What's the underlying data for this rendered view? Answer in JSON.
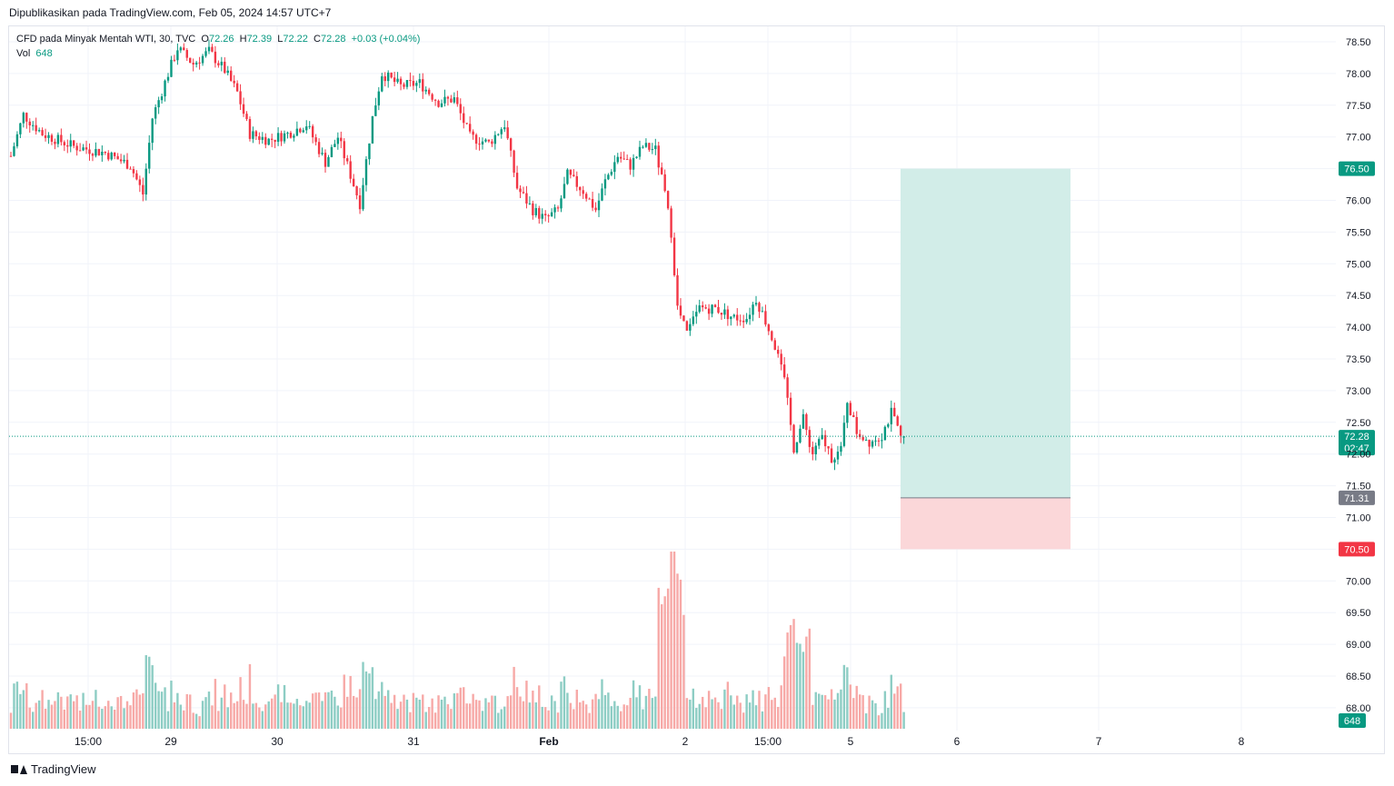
{
  "header": {
    "published": "Dipublikasikan pada TradingView.com, Feb 05, 2024 14:57 UTC+7"
  },
  "legend": {
    "symbol": "CFD pada Minyak Mentah WTI, 30, TVC",
    "o_label": "O",
    "o_value": "72.26",
    "h_label": "H",
    "h_value": "72.39",
    "l_label": "L",
    "l_value": "72.22",
    "c_label": "C",
    "c_value": "72.28",
    "change": "+0.03 (+0.04%)",
    "vol_label": "Vol",
    "vol_value": "648"
  },
  "footer": {
    "brand": "TradingView"
  },
  "colors": {
    "up": "#089981",
    "down": "#f23645",
    "up_vol": "#8dcdc4",
    "down_vol": "#f7a9a7",
    "target_fill": "#d2ede8",
    "stop_fill": "#fbd7d9",
    "grid": "#f0f3fa",
    "axis_text": "#131722",
    "current_price_tag": "#089981",
    "entry_tag": "#787b86",
    "stop_tag": "#f23645"
  },
  "chart_data": {
    "type": "candlestick",
    "timeframe": "30",
    "y_axis_ticks": [
      "68.00",
      "68.50",
      "69.00",
      "69.50",
      "70.00",
      "70.50",
      "71.00",
      "71.50",
      "72.00",
      "72.50",
      "73.00",
      "73.50",
      "74.00",
      "74.50",
      "75.00",
      "75.50",
      "76.00",
      "76.50",
      "77.00",
      "77.50",
      "78.00",
      "78.50"
    ],
    "ylim": [
      67.75,
      78.75
    ],
    "x_axis_labels": [
      "15:00",
      "29",
      "30",
      "31",
      "Feb",
      "2",
      "15:00",
      "5",
      "6",
      "7",
      "8"
    ],
    "current_price": {
      "value": "72.28",
      "countdown": "02:47"
    },
    "volume_last": "648",
    "position_tool": {
      "type": "long",
      "target": {
        "value": 76.5,
        "label": "76.50"
      },
      "entry": {
        "value": 71.31,
        "label": "71.31"
      },
      "stop": {
        "value": 70.5,
        "label": "70.50"
      }
    },
    "close_path": [
      {
        "t": 0,
        "c": 76.7
      },
      {
        "t": 4,
        "c": 77.35
      },
      {
        "t": 10,
        "c": 77.05
      },
      {
        "t": 20,
        "c": 76.85
      },
      {
        "t": 30,
        "c": 76.75
      },
      {
        "t": 38,
        "c": 76.55
      },
      {
        "t": 42,
        "c": 76.1
      },
      {
        "t": 45,
        "c": 77.3
      },
      {
        "t": 50,
        "c": 78.0
      },
      {
        "t": 53,
        "c": 78.4
      },
      {
        "t": 58,
        "c": 78.15
      },
      {
        "t": 63,
        "c": 78.35
      },
      {
        "t": 68,
        "c": 78.05
      },
      {
        "t": 72,
        "c": 77.7
      },
      {
        "t": 76,
        "c": 77.05
      },
      {
        "t": 82,
        "c": 76.95
      },
      {
        "t": 88,
        "c": 77.05
      },
      {
        "t": 94,
        "c": 77.2
      },
      {
        "t": 100,
        "c": 76.6
      },
      {
        "t": 104,
        "c": 77.0
      },
      {
        "t": 108,
        "c": 76.4
      },
      {
        "t": 111,
        "c": 75.95
      },
      {
        "t": 115,
        "c": 77.3
      },
      {
        "t": 118,
        "c": 78.0
      },
      {
        "t": 124,
        "c": 77.8
      },
      {
        "t": 130,
        "c": 77.85
      },
      {
        "t": 136,
        "c": 77.55
      },
      {
        "t": 141,
        "c": 77.6
      },
      {
        "t": 146,
        "c": 77.0
      },
      {
        "t": 152,
        "c": 76.9
      },
      {
        "t": 157,
        "c": 77.2
      },
      {
        "t": 161,
        "c": 76.2
      },
      {
        "t": 166,
        "c": 75.85
      },
      {
        "t": 170,
        "c": 75.7
      },
      {
        "t": 174,
        "c": 75.85
      },
      {
        "t": 177,
        "c": 76.4
      },
      {
        "t": 182,
        "c": 76.15
      },
      {
        "t": 186,
        "c": 75.85
      },
      {
        "t": 189,
        "c": 76.3
      },
      {
        "t": 193,
        "c": 76.7
      },
      {
        "t": 197,
        "c": 76.55
      },
      {
        "t": 201,
        "c": 76.85
      },
      {
        "t": 205,
        "c": 76.8
      },
      {
        "t": 208,
        "c": 76.1
      },
      {
        "t": 210,
        "c": 75.5
      },
      {
        "t": 212,
        "c": 74.3
      },
      {
        "t": 215,
        "c": 73.9
      },
      {
        "t": 219,
        "c": 74.3
      },
      {
        "t": 224,
        "c": 74.3
      },
      {
        "t": 230,
        "c": 74.15
      },
      {
        "t": 234,
        "c": 74.15
      },
      {
        "t": 237,
        "c": 74.45
      },
      {
        "t": 240,
        "c": 74.1
      },
      {
        "t": 243,
        "c": 73.7
      },
      {
        "t": 246,
        "c": 73.15
      },
      {
        "t": 249,
        "c": 72.1
      },
      {
        "t": 252,
        "c": 72.55
      },
      {
        "t": 255,
        "c": 72.0
      },
      {
        "t": 258,
        "c": 72.25
      },
      {
        "t": 261,
        "c": 71.95
      },
      {
        "t": 264,
        "c": 72.05
      },
      {
        "t": 266,
        "c": 72.85
      },
      {
        "t": 269,
        "c": 72.35
      },
      {
        "t": 273,
        "c": 72.2
      },
      {
        "t": 277,
        "c": 72.3
      },
      {
        "t": 280,
        "c": 72.65
      },
      {
        "t": 283,
        "c": 72.26
      },
      {
        "t": 284,
        "c": 72.28
      }
    ]
  }
}
